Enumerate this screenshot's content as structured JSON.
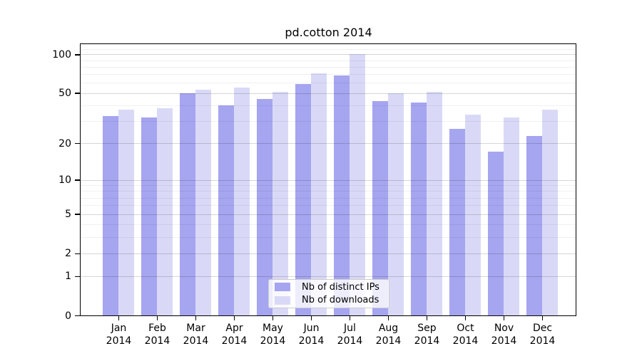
{
  "chart_data": {
    "type": "bar",
    "title": "pd.cotton 2014",
    "categories": [
      "Jan 2014",
      "Feb 2014",
      "Mar 2014",
      "Apr 2014",
      "May 2014",
      "Jun 2014",
      "Jul 2014",
      "Aug 2014",
      "Sep 2014",
      "Oct 2014",
      "Nov 2014",
      "Dec 2014"
    ],
    "x_tick_month": [
      "Jan",
      "Feb",
      "Mar",
      "Apr",
      "May",
      "Jun",
      "Jul",
      "Aug",
      "Sep",
      "Oct",
      "Nov",
      "Dec"
    ],
    "x_tick_year": "2014",
    "series": [
      {
        "name": "Nb of distinct IPs",
        "color": "#a5a5f0",
        "values": [
          33,
          32,
          50,
          40,
          45,
          59,
          69,
          43,
          42,
          26,
          17,
          23
        ]
      },
      {
        "name": "Nb of downloads",
        "color": "#d9d9f7",
        "values": [
          37,
          38,
          53,
          55,
          51,
          71,
          100,
          50,
          51,
          34,
          32,
          37
        ]
      }
    ],
    "yscale": "log10(1+x)",
    "ylim": [
      0,
      120
    ],
    "y_ticks": [
      100,
      50,
      20,
      10,
      5,
      2,
      1,
      0
    ],
    "y_minor_gridlines": [
      110,
      90,
      80,
      70,
      60,
      40,
      30,
      9,
      8,
      7,
      6,
      4,
      3
    ],
    "grid": true,
    "legend_position": "lower center",
    "frame_color": "#000000",
    "background_color": "#ffffff"
  }
}
